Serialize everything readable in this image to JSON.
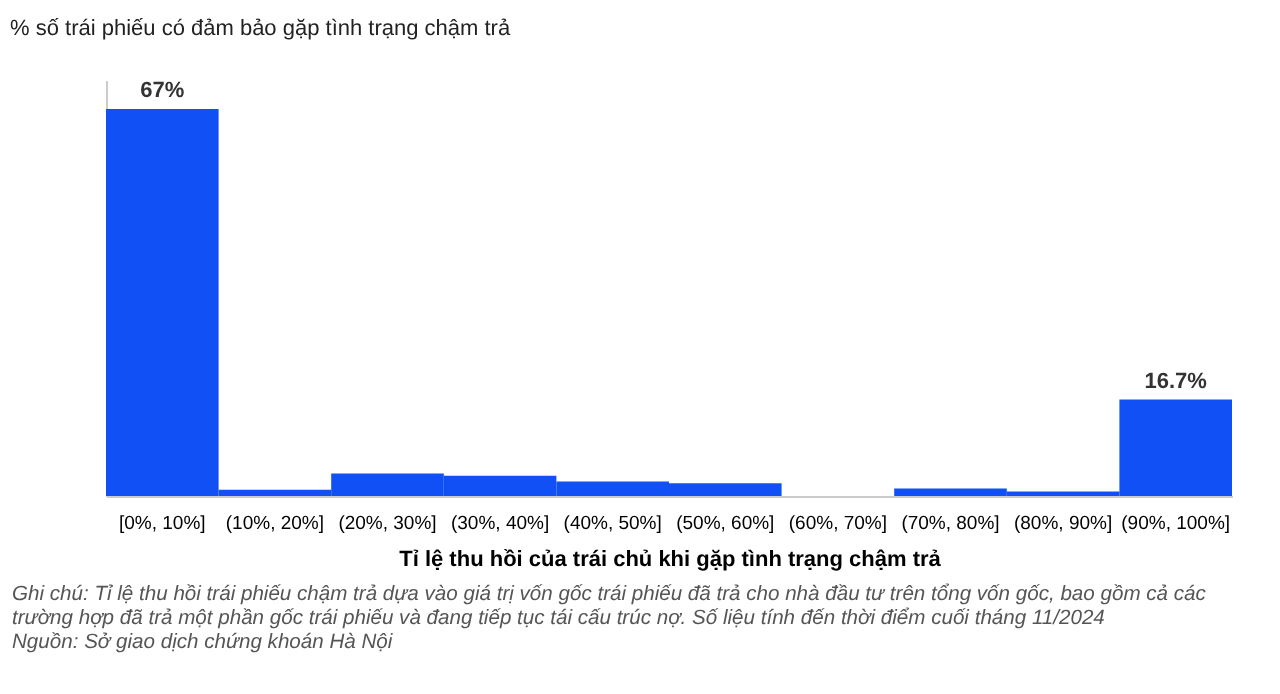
{
  "chart_data": {
    "type": "bar",
    "title": "% số trái phiếu có đảm bảo gặp tình trạng chậm trả",
    "xlabel": "Tỉ lệ thu hồi của trái chủ khi gặp tình trạng chậm trả",
    "categories": [
      "[0%, 10%]",
      "(10%, 20%]",
      "(20%, 30%]",
      "(30%, 40%]",
      "(40%, 50%]",
      "(50%, 60%]",
      "(60%, 70%]",
      "(70%, 80%]",
      "(80%, 90%]",
      "(90%, 100%]"
    ],
    "values": [
      67,
      1.1,
      3.9,
      3.5,
      2.5,
      2.2,
      0,
      1.3,
      0.8,
      16.7
    ],
    "value_labels": [
      "67%",
      null,
      null,
      null,
      null,
      null,
      null,
      null,
      null,
      "16.7%"
    ],
    "color": "#1050f5",
    "ylim": [
      0,
      72
    ],
    "annotations": [
      "Ghi chú: Tỉ lệ thu hồi trái phiếu chậm trả dựa vào giá trị vốn gốc trái phiếu đã trả cho nhà đầu tư trên tổng vốn gốc, bao gồm cả các trường hợp đã trả một phần gốc trái phiếu và đang tiếp tục tái cấu trúc nợ. Số liệu tính đến thời điểm cuối tháng 11/2024",
      "Nguồn: Sở giao dịch chứng khoán Hà Nội"
    ]
  }
}
